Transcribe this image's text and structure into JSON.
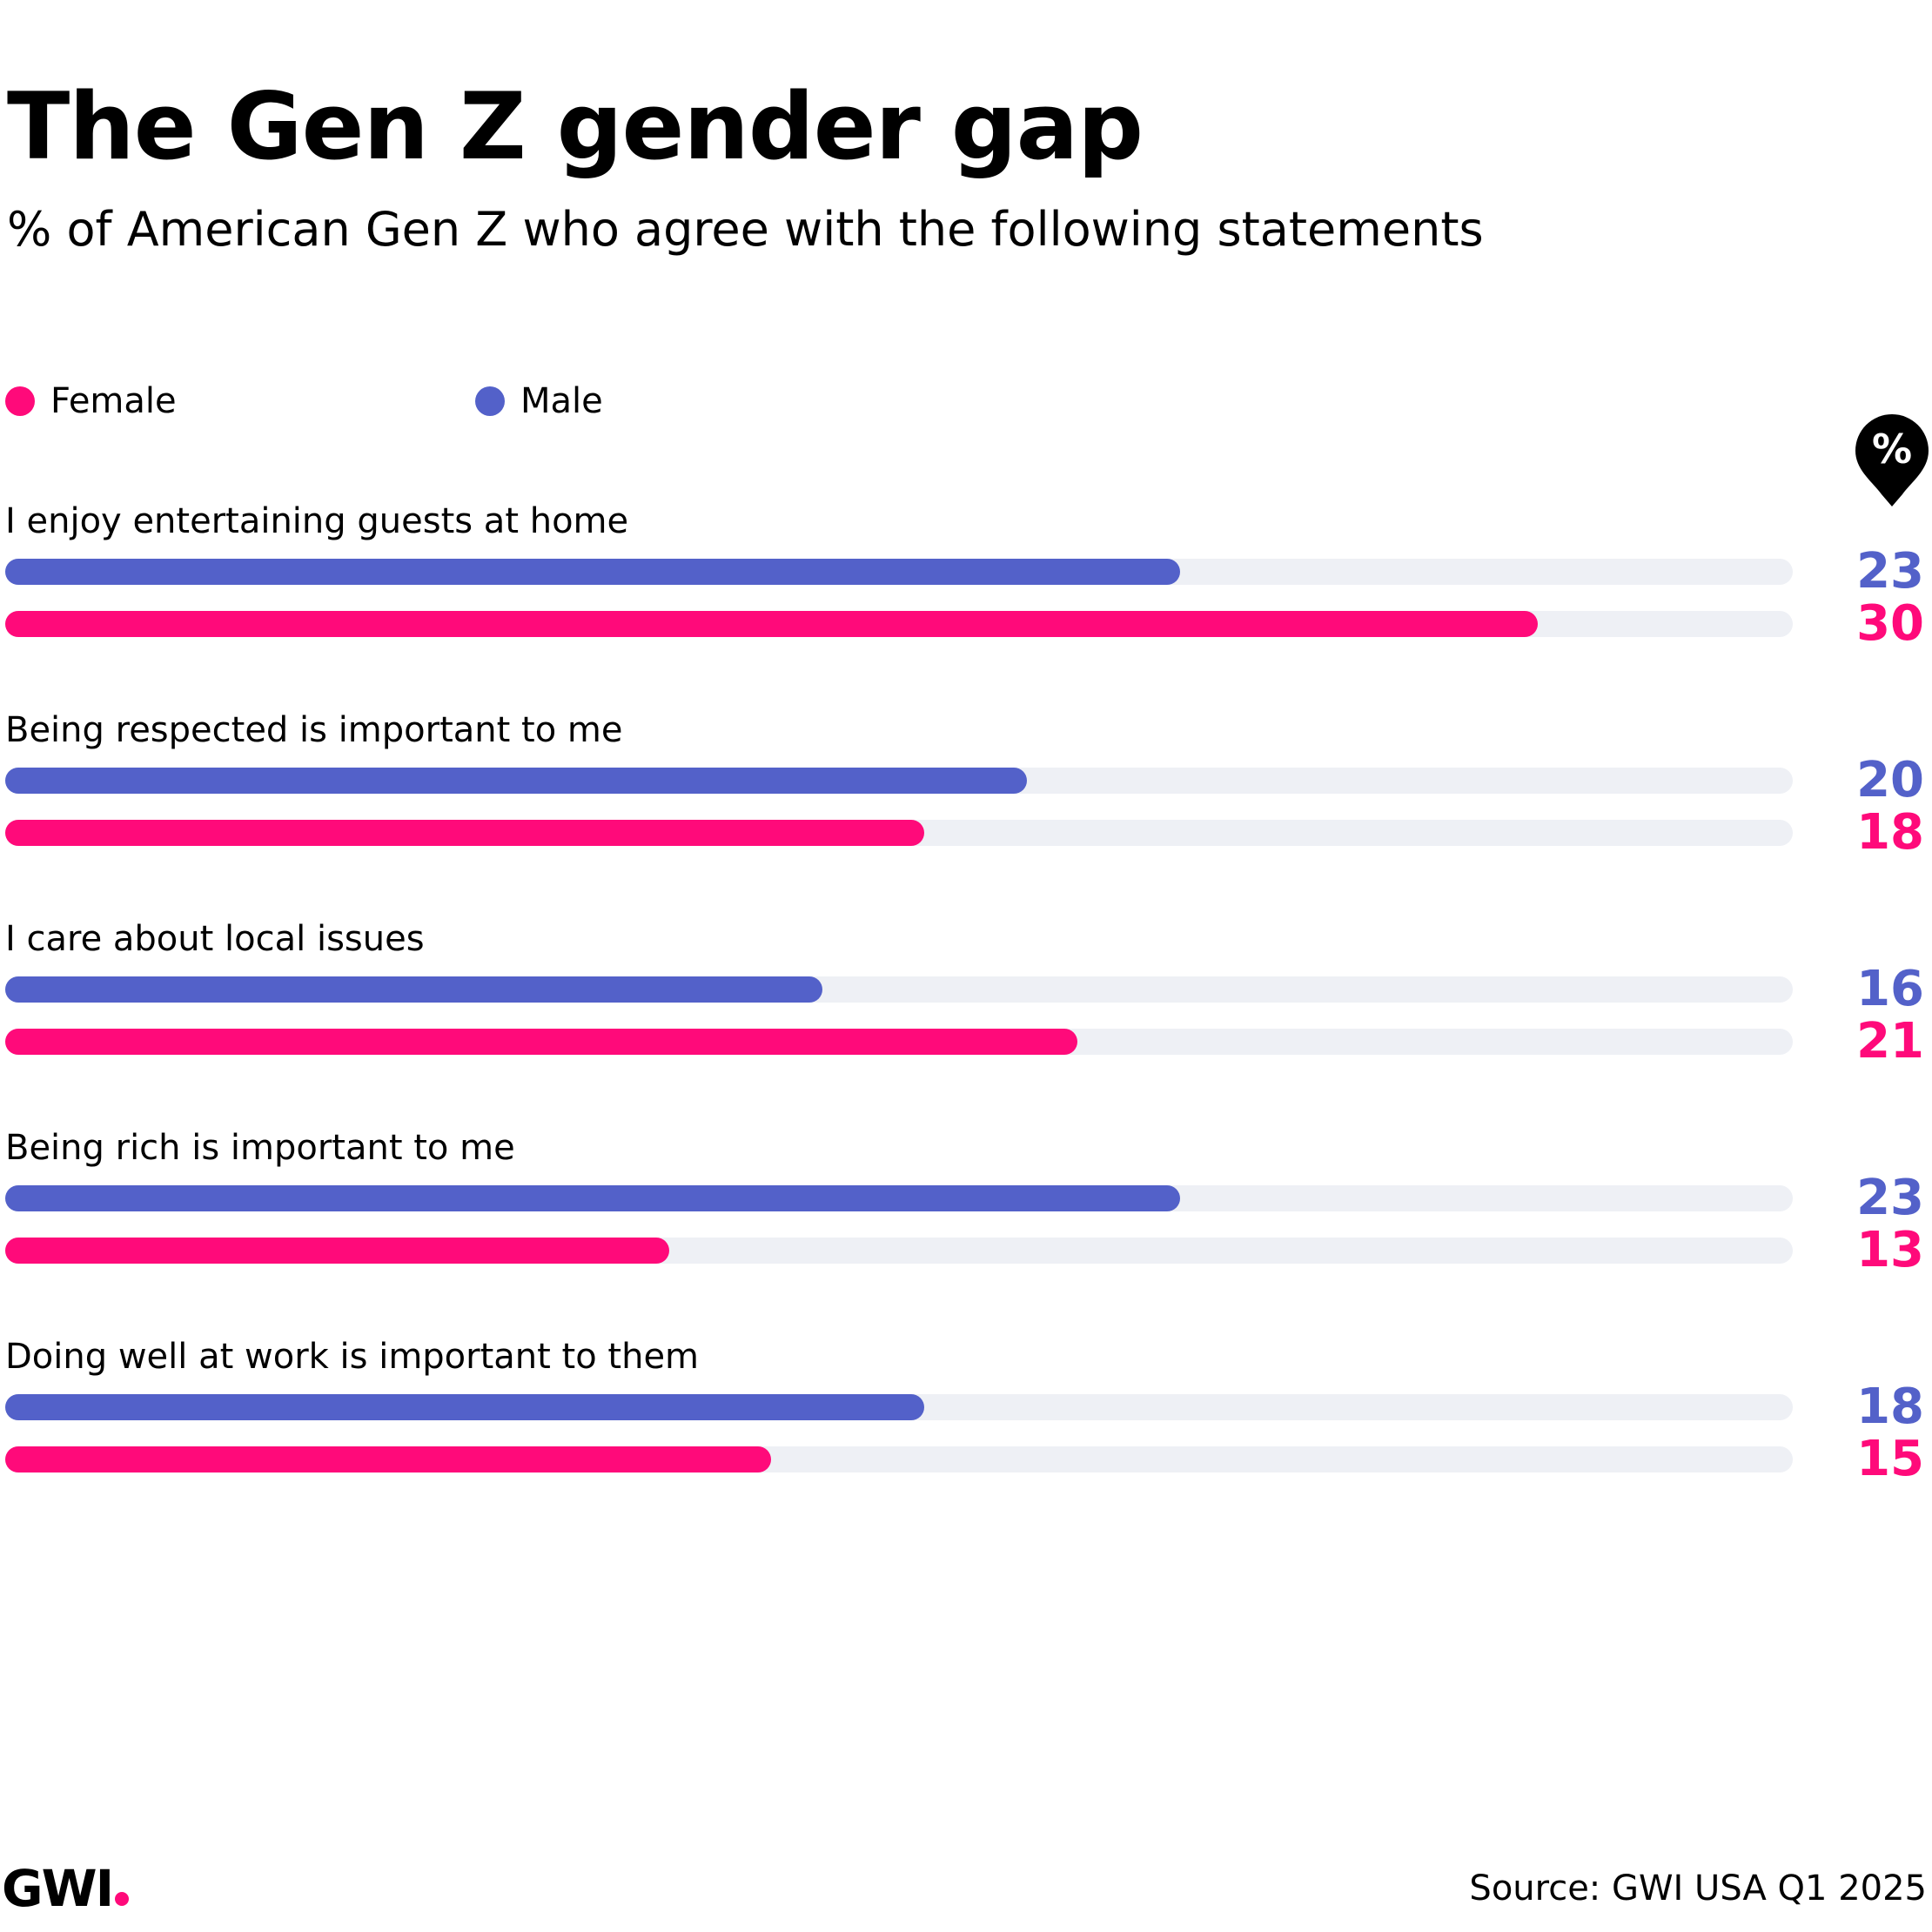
{
  "chart_data": {
    "type": "bar",
    "orientation": "horizontal",
    "title": "The Gen Z gender gap",
    "subtitle": "% of American Gen Z who agree with the following statements",
    "unit_badge": "%",
    "categories": [
      "I enjoy entertaining guests at home",
      "Being respected is important to me",
      "I care about local issues",
      "Being rich is important to me",
      "Doing well at work is important to them"
    ],
    "series": [
      {
        "name": "Male",
        "color": "#5361c9",
        "values": [
          23,
          20,
          16,
          23,
          18
        ]
      },
      {
        "name": "Female",
        "color": "#ff0a7a",
        "values": [
          30,
          18,
          21,
          13,
          15
        ]
      }
    ],
    "legend": [
      {
        "name": "Female",
        "color": "#ff0a7a"
      },
      {
        "name": "Male",
        "color": "#5361c9"
      }
    ],
    "xlim": [
      0,
      35
    ],
    "grid": false,
    "track_color": "#eef0f5"
  },
  "footer": {
    "logo": "GWI",
    "logo_dot_color": "#ff0a7a",
    "source": "Source: GWI USA Q1 2025"
  }
}
